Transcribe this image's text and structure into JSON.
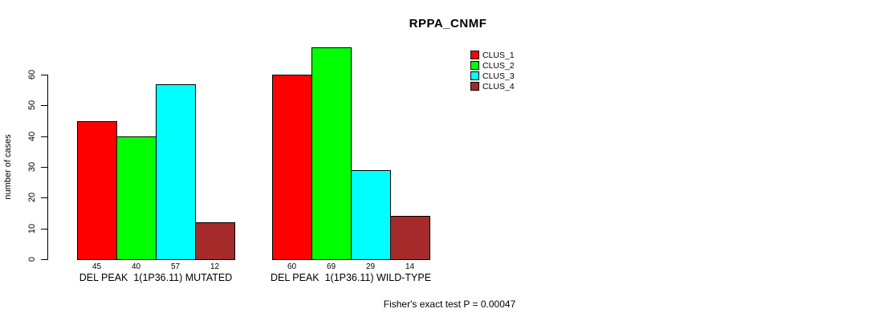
{
  "chart_data": {
    "type": "bar",
    "title": "RPPA_CNMF",
    "ylabel": "number of cases",
    "xlabel": "",
    "categories": [
      "DEL PEAK  1(1P36.11) MUTATED",
      "DEL PEAK  1(1P36.11) WILD-TYPE"
    ],
    "series": [
      {
        "name": "CLUS_1",
        "color": "#ff0000",
        "values": [
          45,
          60
        ]
      },
      {
        "name": "CLUS_2",
        "color": "#00ff00",
        "values": [
          40,
          69
        ]
      },
      {
        "name": "CLUS_3",
        "color": "#00ffff",
        "values": [
          57,
          29
        ]
      },
      {
        "name": "CLUS_4",
        "color": "#a52a2a",
        "values": [
          12,
          14
        ]
      }
    ],
    "bar_value_labels": [
      [
        45,
        40,
        57,
        12
      ],
      [
        60,
        69,
        29,
        14
      ]
    ],
    "yticks": [
      0,
      10,
      20,
      30,
      40,
      50,
      60
    ],
    "ylim": [
      0,
      60
    ],
    "grid": "off",
    "legend_position": "top-right",
    "annotation": "Fisher's exact test P = 0.00047"
  }
}
